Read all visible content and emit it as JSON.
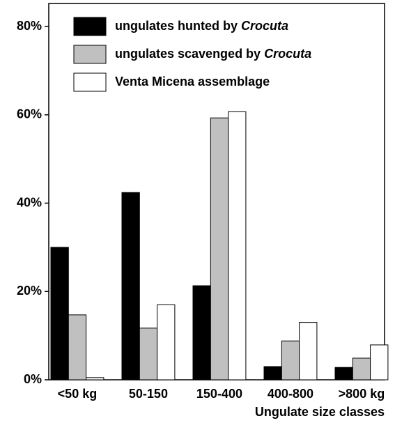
{
  "chart_data": {
    "type": "bar",
    "x_label": "Ungulate size classes",
    "categories": [
      "<50 kg",
      "50-150",
      "150-400",
      "400-800",
      ">800 kg"
    ],
    "series": [
      {
        "name": "ungulates hunted by Crocuta",
        "color": "#000000",
        "values": [
          30,
          42.4,
          21.3,
          3,
          2.8
        ]
      },
      {
        "name": "ungulates scavenged by Crocuta",
        "color": "#c0c0c0",
        "values": [
          14.7,
          11.7,
          59.3,
          8.8,
          4.9
        ]
      },
      {
        "name": "Venta Micena assemblage",
        "color": "#ffffff",
        "values": [
          0.5,
          17,
          60.7,
          13,
          7.9
        ]
      }
    ],
    "ylim": [
      0,
      80
    ],
    "yticks": [
      {
        "value": 0,
        "label": "0%"
      },
      {
        "value": 20,
        "label": "20%"
      },
      {
        "value": 40,
        "label": "40%"
      },
      {
        "value": 60,
        "label": "60%"
      },
      {
        "value": 80,
        "label": "80%"
      }
    ],
    "legend": "top-left"
  }
}
